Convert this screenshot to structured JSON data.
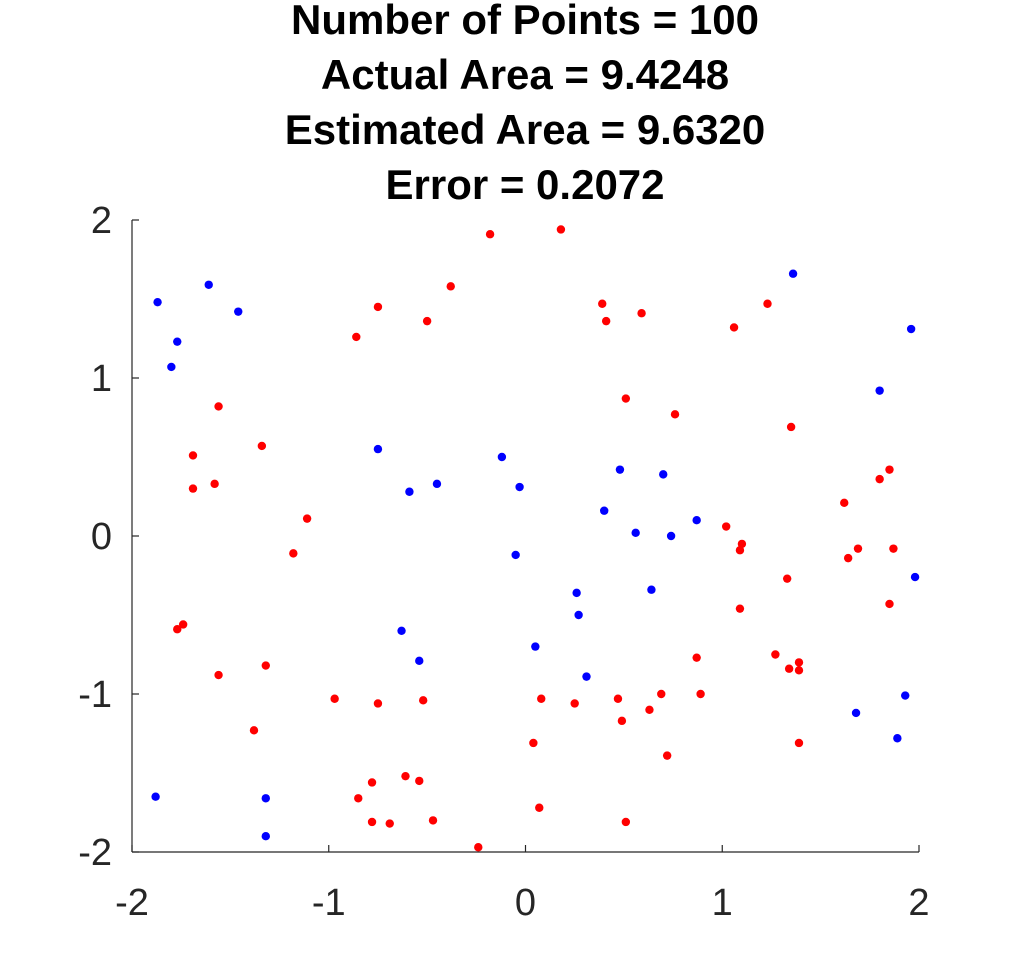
{
  "chart_data": {
    "type": "scatter",
    "title_lines": [
      "Number of Points = 100",
      "Actual Area = 9.4248",
      "Estimated Area = 9.6320",
      "Error = 0.2072"
    ],
    "xlabel": "",
    "ylabel": "",
    "xlim": [
      -2,
      2
    ],
    "ylim": [
      -2,
      2
    ],
    "xticks": [
      "-2",
      "-1",
      "0",
      "1",
      "2"
    ],
    "yticks": [
      "2",
      "1",
      "0",
      "-1",
      "-2"
    ],
    "grid": false,
    "legend": false,
    "colors": {
      "series_red": "#ff0000",
      "series_blue": "#0000ff",
      "axis": "#262626"
    },
    "series": [
      {
        "color": "#ff0000",
        "points": [
          [
            -0.18,
            1.91
          ],
          [
            0.18,
            1.94
          ],
          [
            -0.38,
            1.58
          ],
          [
            -0.75,
            1.45
          ],
          [
            -0.5,
            1.36
          ],
          [
            -0.86,
            1.26
          ],
          [
            0.39,
            1.47
          ],
          [
            0.41,
            1.36
          ],
          [
            0.59,
            1.41
          ],
          [
            1.23,
            1.47
          ],
          [
            1.06,
            1.32
          ],
          [
            -1.56,
            0.82
          ],
          [
            0.51,
            0.87
          ],
          [
            0.76,
            0.77
          ],
          [
            1.35,
            0.69
          ],
          [
            -1.34,
            0.57
          ],
          [
            -1.69,
            0.51
          ],
          [
            -1.69,
            0.3
          ],
          [
            -1.58,
            0.33
          ],
          [
            -1.11,
            0.11
          ],
          [
            -1.18,
            -0.11
          ],
          [
            1.02,
            0.06
          ],
          [
            1.1,
            -0.05
          ],
          [
            1.09,
            -0.09
          ],
          [
            1.33,
            -0.27
          ],
          [
            1.62,
            0.21
          ],
          [
            1.64,
            -0.14
          ],
          [
            1.69,
            -0.08
          ],
          [
            1.8,
            0.36
          ],
          [
            1.85,
            0.42
          ],
          [
            1.87,
            -0.08
          ],
          [
            1.85,
            -0.43
          ],
          [
            -1.77,
            -0.59
          ],
          [
            -1.74,
            -0.56
          ],
          [
            -1.56,
            -0.88
          ],
          [
            -1.32,
            -0.82
          ],
          [
            -1.38,
            -1.23
          ],
          [
            -0.97,
            -1.03
          ],
          [
            -0.75,
            -1.06
          ],
          [
            -0.52,
            -1.04
          ],
          [
            0.08,
            -1.03
          ],
          [
            0.25,
            -1.06
          ],
          [
            0.47,
            -1.03
          ],
          [
            0.49,
            -1.17
          ],
          [
            0.63,
            -1.1
          ],
          [
            0.69,
            -1.0
          ],
          [
            0.89,
            -1.0
          ],
          [
            0.87,
            -0.77
          ],
          [
            1.09,
            -0.46
          ],
          [
            1.27,
            -0.75
          ],
          [
            1.34,
            -0.84
          ],
          [
            1.39,
            -0.8
          ],
          [
            1.39,
            -0.85
          ],
          [
            1.39,
            -1.31
          ],
          [
            0.72,
            -1.39
          ],
          [
            0.04,
            -1.31
          ],
          [
            0.07,
            -1.72
          ],
          [
            -0.61,
            -1.52
          ],
          [
            -0.54,
            -1.55
          ],
          [
            -0.78,
            -1.56
          ],
          [
            -0.85,
            -1.66
          ],
          [
            -0.78,
            -1.81
          ],
          [
            -0.69,
            -1.82
          ],
          [
            -0.47,
            -1.8
          ],
          [
            0.51,
            -1.81
          ],
          [
            -0.24,
            -1.97
          ]
        ]
      },
      {
        "color": "#0000ff",
        "points": [
          [
            -1.87,
            1.48
          ],
          [
            -1.61,
            1.59
          ],
          [
            -1.46,
            1.42
          ],
          [
            -1.77,
            1.23
          ],
          [
            -1.8,
            1.07
          ],
          [
            1.36,
            1.66
          ],
          [
            1.96,
            1.31
          ],
          [
            1.8,
            0.92
          ],
          [
            -0.75,
            0.55
          ],
          [
            -0.59,
            0.28
          ],
          [
            -0.45,
            0.33
          ],
          [
            -0.12,
            0.5
          ],
          [
            -0.03,
            0.31
          ],
          [
            0.48,
            0.42
          ],
          [
            0.7,
            0.39
          ],
          [
            0.4,
            0.16
          ],
          [
            0.56,
            0.02
          ],
          [
            0.74,
            0.0
          ],
          [
            0.87,
            0.1
          ],
          [
            -0.05,
            -0.12
          ],
          [
            0.26,
            -0.36
          ],
          [
            0.27,
            -0.5
          ],
          [
            0.64,
            -0.34
          ],
          [
            1.98,
            -0.26
          ],
          [
            -0.63,
            -0.6
          ],
          [
            -0.54,
            -0.79
          ],
          [
            0.05,
            -0.7
          ],
          [
            0.31,
            -0.89
          ],
          [
            1.68,
            -1.12
          ],
          [
            1.93,
            -1.01
          ],
          [
            1.89,
            -1.28
          ],
          [
            -1.88,
            -1.65
          ],
          [
            -1.32,
            -1.66
          ],
          [
            -1.32,
            -1.9
          ]
        ]
      }
    ]
  }
}
